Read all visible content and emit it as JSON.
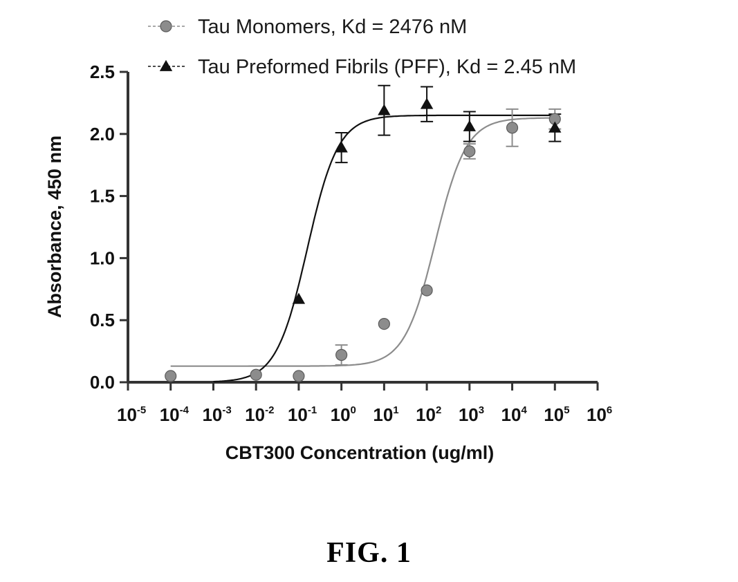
{
  "chart_data": {
    "type": "scatter",
    "xlabel": "CBT300 Concentration (ug/ml)",
    "ylabel": "Absorbance, 450 nm",
    "xscale": "log",
    "xlim": [
      1e-05,
      1000000.0
    ],
    "ylim": [
      0,
      2.5
    ],
    "x_tick_labels": [
      {
        "base": "10",
        "exp": "-5"
      },
      {
        "base": "10",
        "exp": "-4"
      },
      {
        "base": "10",
        "exp": "-3"
      },
      {
        "base": "10",
        "exp": "-2"
      },
      {
        "base": "10",
        "exp": "-1"
      },
      {
        "base": "10",
        "exp": "0"
      },
      {
        "base": "10",
        "exp": "1"
      },
      {
        "base": "10",
        "exp": "2"
      },
      {
        "base": "10",
        "exp": "3"
      },
      {
        "base": "10",
        "exp": "4"
      },
      {
        "base": "10",
        "exp": "5"
      },
      {
        "base": "10",
        "exp": "6"
      }
    ],
    "y_tick_labels": [
      "0.0",
      "0.5",
      "1.0",
      "1.5",
      "2.0",
      "2.5"
    ],
    "legend_position": "top",
    "grid": false,
    "series": [
      {
        "name": "Tau Monomers, Kd = 2476 nM",
        "marker": "circle",
        "color": "#8c8c8c",
        "points": [
          {
            "x": 0.0001,
            "y": 0.05,
            "err": 0.0
          },
          {
            "x": 0.01,
            "y": 0.06,
            "err": 0.0
          },
          {
            "x": 0.1,
            "y": 0.05,
            "err": 0.0
          },
          {
            "x": 1,
            "y": 0.22,
            "err": 0.08
          },
          {
            "x": 10,
            "y": 0.47,
            "err": 0.0
          },
          {
            "x": 100,
            "y": 0.74,
            "err": 0.0
          },
          {
            "x": 1000,
            "y": 1.86,
            "err": 0.06
          },
          {
            "x": 10000,
            "y": 2.05,
            "err": 0.15
          },
          {
            "x": 100000,
            "y": 2.12,
            "err": 0.08
          }
        ],
        "fit": {
          "bottom": 0.13,
          "top": 2.13,
          "log_ec50": 2.2,
          "hill": 1.2
        }
      },
      {
        "name": "Tau Preformed Fibrils (PFF), Kd = 2.45 nM",
        "marker": "triangle",
        "color": "#111111",
        "points": [
          {
            "x": 0.1,
            "y": 0.67,
            "err": 0.0
          },
          {
            "x": 1,
            "y": 1.89,
            "err": 0.12
          },
          {
            "x": 10,
            "y": 2.19,
            "err": 0.2
          },
          {
            "x": 100,
            "y": 2.24,
            "err": 0.14
          },
          {
            "x": 1000,
            "y": 2.06,
            "err": 0.12
          },
          {
            "x": 100000,
            "y": 2.05,
            "err": 0.11
          }
        ],
        "fit": {
          "bottom": 0.0,
          "top": 2.15,
          "log_ec50": -0.8,
          "hill": 1.2
        }
      }
    ]
  },
  "figure": {
    "caption": "FIG. 1"
  }
}
